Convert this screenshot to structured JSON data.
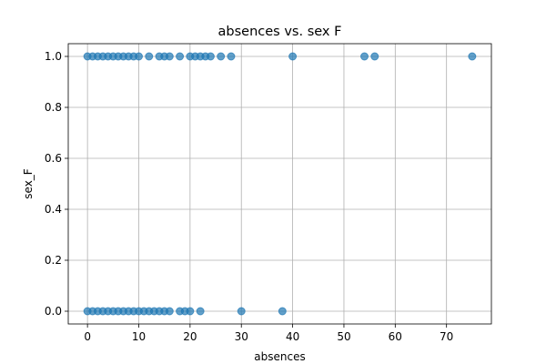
{
  "chart_data": {
    "type": "scatter",
    "title": "absences vs. sex F",
    "xlabel": "absences",
    "ylabel": "sex_F",
    "xlim": [
      -3.75,
      78.75
    ],
    "ylim": [
      -0.05,
      1.05
    ],
    "xticks": [
      0,
      10,
      20,
      30,
      40,
      50,
      60,
      70
    ],
    "yticks": [
      0.0,
      0.2,
      0.4,
      0.6,
      0.8,
      1.0
    ],
    "xtick_labels": [
      "0",
      "10",
      "20",
      "30",
      "40",
      "50",
      "60",
      "70"
    ],
    "ytick_labels": [
      "0.0",
      "0.2",
      "0.4",
      "0.6",
      "0.8",
      "1.0"
    ],
    "grid": true,
    "color": "#1f77b4",
    "series": [
      {
        "points": [
          [
            0,
            1
          ],
          [
            1,
            1
          ],
          [
            2,
            1
          ],
          [
            3,
            1
          ],
          [
            4,
            1
          ],
          [
            5,
            1
          ],
          [
            6,
            1
          ],
          [
            7,
            1
          ],
          [
            8,
            1
          ],
          [
            9,
            1
          ],
          [
            10,
            1
          ],
          [
            12,
            1
          ],
          [
            14,
            1
          ],
          [
            15,
            1
          ],
          [
            16,
            1
          ],
          [
            18,
            1
          ],
          [
            20,
            1
          ],
          [
            21,
            1
          ],
          [
            22,
            1
          ],
          [
            23,
            1
          ],
          [
            24,
            1
          ],
          [
            26,
            1
          ],
          [
            28,
            1
          ],
          [
            40,
            1
          ],
          [
            54,
            1
          ],
          [
            56,
            1
          ],
          [
            75,
            1
          ],
          [
            0,
            0
          ],
          [
            1,
            0
          ],
          [
            2,
            0
          ],
          [
            3,
            0
          ],
          [
            4,
            0
          ],
          [
            5,
            0
          ],
          [
            6,
            0
          ],
          [
            7,
            0
          ],
          [
            8,
            0
          ],
          [
            9,
            0
          ],
          [
            10,
            0
          ],
          [
            11,
            0
          ],
          [
            12,
            0
          ],
          [
            13,
            0
          ],
          [
            14,
            0
          ],
          [
            15,
            0
          ],
          [
            16,
            0
          ],
          [
            18,
            0
          ],
          [
            19,
            0
          ],
          [
            20,
            0
          ],
          [
            22,
            0
          ],
          [
            30,
            0
          ],
          [
            38,
            0
          ]
        ]
      }
    ]
  }
}
